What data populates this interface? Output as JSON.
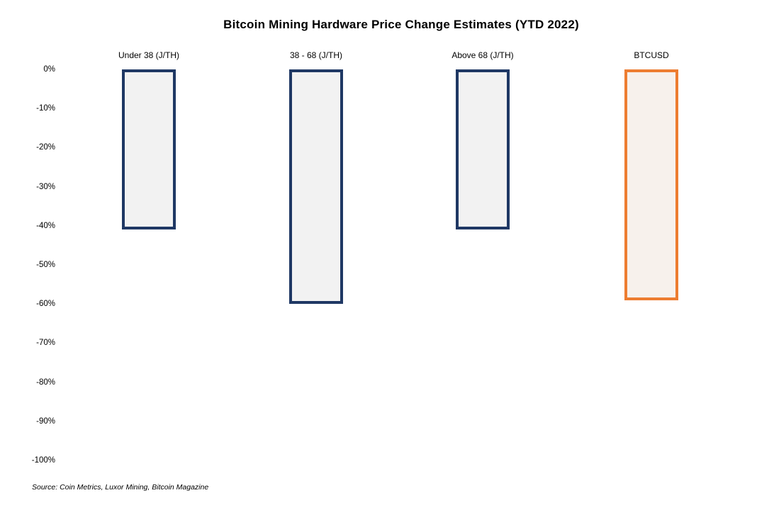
{
  "chart_data": {
    "type": "bar",
    "title": "Bitcoin Mining Hardware Price Change Estimates (YTD 2022)",
    "categories": [
      "Under 38 (J/TH)",
      "38 - 68 (J/TH)",
      "Above 68 (J/TH)",
      "BTCUSD"
    ],
    "values": [
      -41,
      -60,
      -41,
      -59
    ],
    "value_unit": "%",
    "xlabel": "",
    "ylabel": "",
    "ylim": [
      -100,
      0
    ],
    "y_ticks": [
      0,
      -10,
      -20,
      -30,
      -40,
      -50,
      -60,
      -70,
      -80,
      -90,
      -100
    ],
    "y_tick_labels": [
      "0%",
      "-10%",
      "-20%",
      "-30%",
      "-40%",
      "-50%",
      "-60%",
      "-70%",
      "-80%",
      "-90%",
      "-100%"
    ],
    "grid": false,
    "legend": false,
    "bar_style": {
      "fills": [
        "#f2f2f2",
        "#f2f2f2",
        "#f2f2f2",
        "#f7f1ec"
      ],
      "border_colors": [
        "#1f3864",
        "#1f3864",
        "#1f3864",
        "#ed7d31"
      ],
      "border_width_px": 4
    },
    "colors": {
      "hardware_border": "#1f3864",
      "btcusd_border": "#ed7d31",
      "background": "#ffffff"
    }
  },
  "footer": {
    "source": "Source: Coin Metrics, Luxor Mining, Bitcoin Magazine"
  }
}
